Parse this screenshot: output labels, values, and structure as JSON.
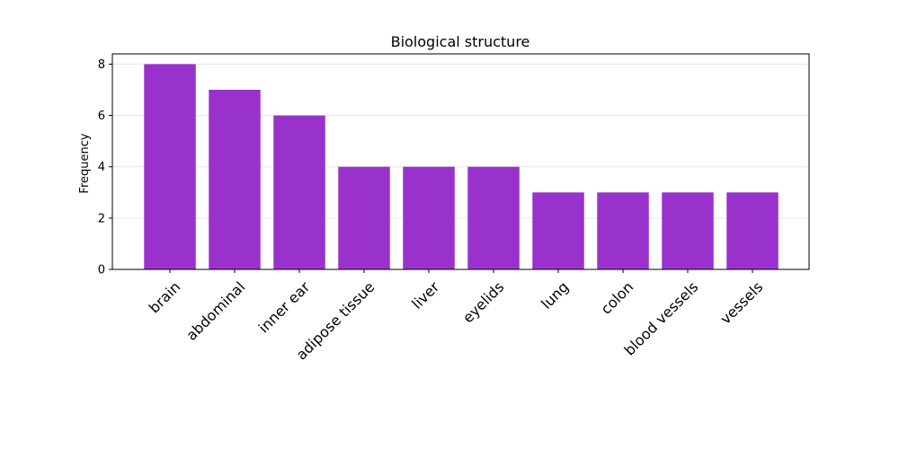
{
  "chart_data": {
    "type": "bar",
    "title": "Biological structure",
    "xlabel": "",
    "ylabel": "Frequency",
    "categories": [
      "brain",
      "abdominal",
      "inner ear",
      "adipose tissue",
      "liver",
      "eyelids",
      "lung",
      "colon",
      "blood vessels",
      "vessels"
    ],
    "values": [
      8,
      7,
      6,
      4,
      4,
      4,
      3,
      3,
      3,
      3
    ],
    "ylim": [
      0,
      8.4
    ],
    "yticks": [
      0,
      2,
      4,
      6,
      8
    ],
    "grid": true,
    "bar_color": "#9932CC",
    "grid_color": "#e6e6e6"
  }
}
